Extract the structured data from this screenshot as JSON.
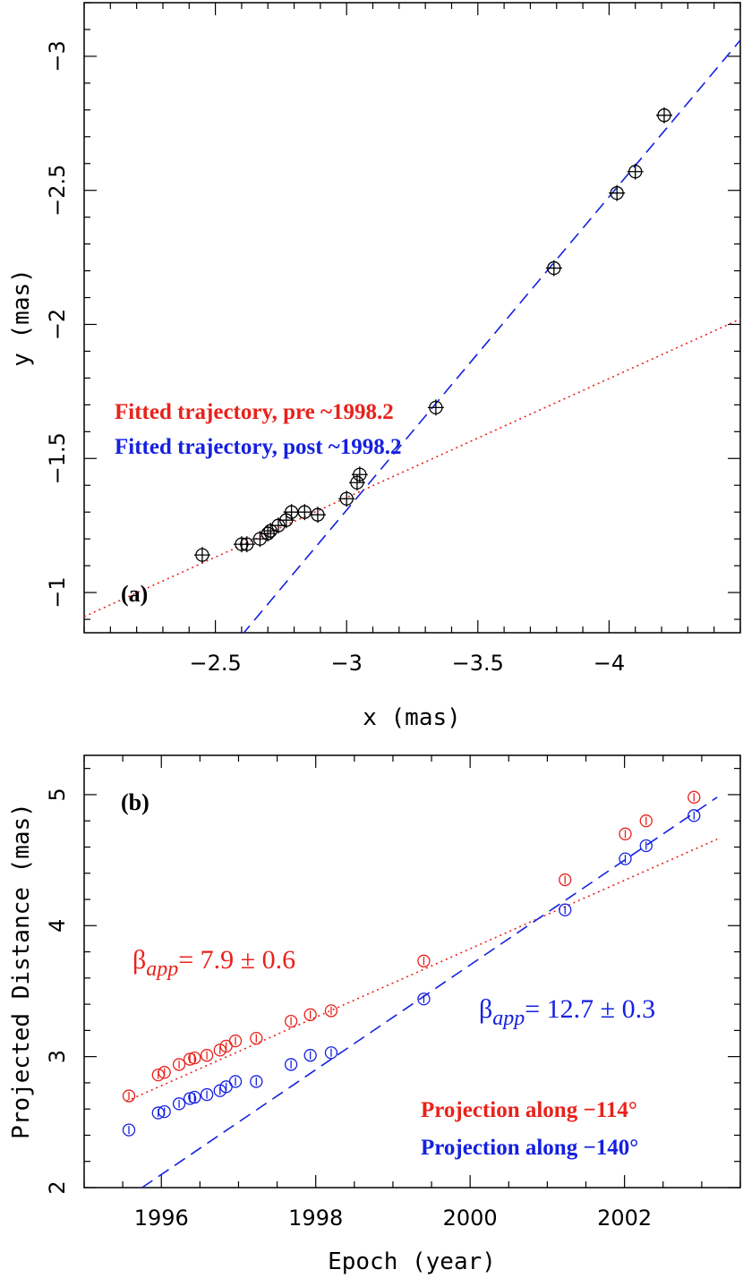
{
  "chart_data": [
    {
      "panel_label": "(a)",
      "type": "scatter",
      "xlabel": "x (mas)",
      "ylabel": "y (mas)",
      "xlim": [
        -2.0,
        -4.5
      ],
      "ylim": [
        -0.85,
        -3.2
      ],
      "xticks": [
        -2.5,
        -3,
        -3.5,
        -4
      ],
      "xtick_labels": [
        "−2.5",
        "−3",
        "−3.5",
        "−4"
      ],
      "yticks": [
        -1,
        -1.5,
        -2,
        -2.5,
        -3
      ],
      "ytick_labels": [
        "−1",
        "−1.5",
        "−2",
        "−2.5",
        "−3"
      ],
      "points": {
        "x": [
          -2.45,
          -2.6,
          -2.62,
          -2.67,
          -2.7,
          -2.71,
          -2.74,
          -2.77,
          -2.79,
          -2.84,
          -2.89,
          -3.0,
          -3.04,
          -3.05,
          -3.34,
          -3.79,
          -4.03,
          -4.1,
          -4.21
        ],
        "y": [
          -1.14,
          -1.18,
          -1.18,
          -1.2,
          -1.22,
          -1.23,
          -1.25,
          -1.27,
          -1.3,
          -1.3,
          -1.29,
          -1.35,
          -1.41,
          -1.44,
          -1.69,
          -2.21,
          -2.49,
          -2.57,
          -2.78
        ]
      },
      "series": [
        {
          "name": "Fitted trajectory, pre ~1998.2",
          "color": "#e8221b",
          "style": "dotted",
          "x": [
            -2.0,
            -4.5
          ],
          "y": [
            -0.91,
            -2.02
          ]
        },
        {
          "name": "Fitted trajectory, post ~1998.2",
          "color": "#1520e0",
          "style": "dashed",
          "x": [
            -2.6,
            -4.5
          ],
          "y": [
            -0.84,
            -3.06
          ]
        }
      ],
      "legend": [
        "Fitted trajectory, pre ~1998.2",
        "Fitted trajectory, post ~1998.2"
      ],
      "legend_placement": "lower-left"
    },
    {
      "panel_label": "(b)",
      "type": "scatter",
      "xlabel": "Epoch (year)",
      "ylabel": "Projected Distance (mas)",
      "xlim": [
        1995.0,
        2003.5
      ],
      "ylim": [
        2.0,
        5.3
      ],
      "xticks": [
        1996,
        1998,
        2000,
        2002
      ],
      "xtick_labels": [
        "1996",
        "1998",
        "2000",
        "2002"
      ],
      "yticks": [
        2,
        3,
        4,
        5
      ],
      "ytick_labels": [
        "2",
        "3",
        "4",
        "5"
      ],
      "series": [
        {
          "name": "Projection along −114°",
          "color": "#e8221b",
          "x": [
            1995.58,
            1995.96,
            1996.04,
            1996.23,
            1996.37,
            1996.43,
            1996.59,
            1996.76,
            1996.84,
            1996.96,
            1997.23,
            1997.68,
            1997.93,
            1998.2,
            1999.4,
            2001.23,
            2002.01,
            2002.28,
            2002.9
          ],
          "y": [
            2.7,
            2.86,
            2.88,
            2.94,
            2.98,
            2.99,
            3.01,
            3.05,
            3.08,
            3.12,
            3.14,
            3.27,
            3.32,
            3.35,
            3.73,
            4.35,
            4.7,
            4.8,
            4.98
          ],
          "fit": {
            "style": "dotted",
            "x": [
              1995.55,
              2003.2
            ],
            "y": [
              2.66,
              4.66
            ]
          }
        },
        {
          "name": "Projection along −140°",
          "color": "#1520e0",
          "x": [
            1995.58,
            1995.96,
            1996.04,
            1996.23,
            1996.37,
            1996.43,
            1996.59,
            1996.76,
            1996.84,
            1996.96,
            1997.23,
            1997.68,
            1997.93,
            1998.2,
            1999.4,
            2001.23,
            2002.01,
            2002.28,
            2002.9
          ],
          "y": [
            2.44,
            2.57,
            2.58,
            2.64,
            2.68,
            2.69,
            2.71,
            2.74,
            2.77,
            2.81,
            2.81,
            2.94,
            3.01,
            3.03,
            3.44,
            4.12,
            4.51,
            4.61,
            4.84
          ],
          "fit": {
            "style": "dashed",
            "x": [
              1995.75,
              2003.2
            ],
            "y": [
              2.0,
              4.98
            ]
          }
        }
      ],
      "annotations": [
        {
          "symbol": "β",
          "subscript": "app",
          "text": "= 7.9 ± 0.6",
          "color": "#e8221b"
        },
        {
          "symbol": "β",
          "subscript": "app",
          "text": "= 12.7 ± 0.3",
          "color": "#1520e0"
        }
      ],
      "legend": [
        "Projection along −114°",
        "Projection along −140°"
      ],
      "legend_placement": "lower-right"
    }
  ]
}
